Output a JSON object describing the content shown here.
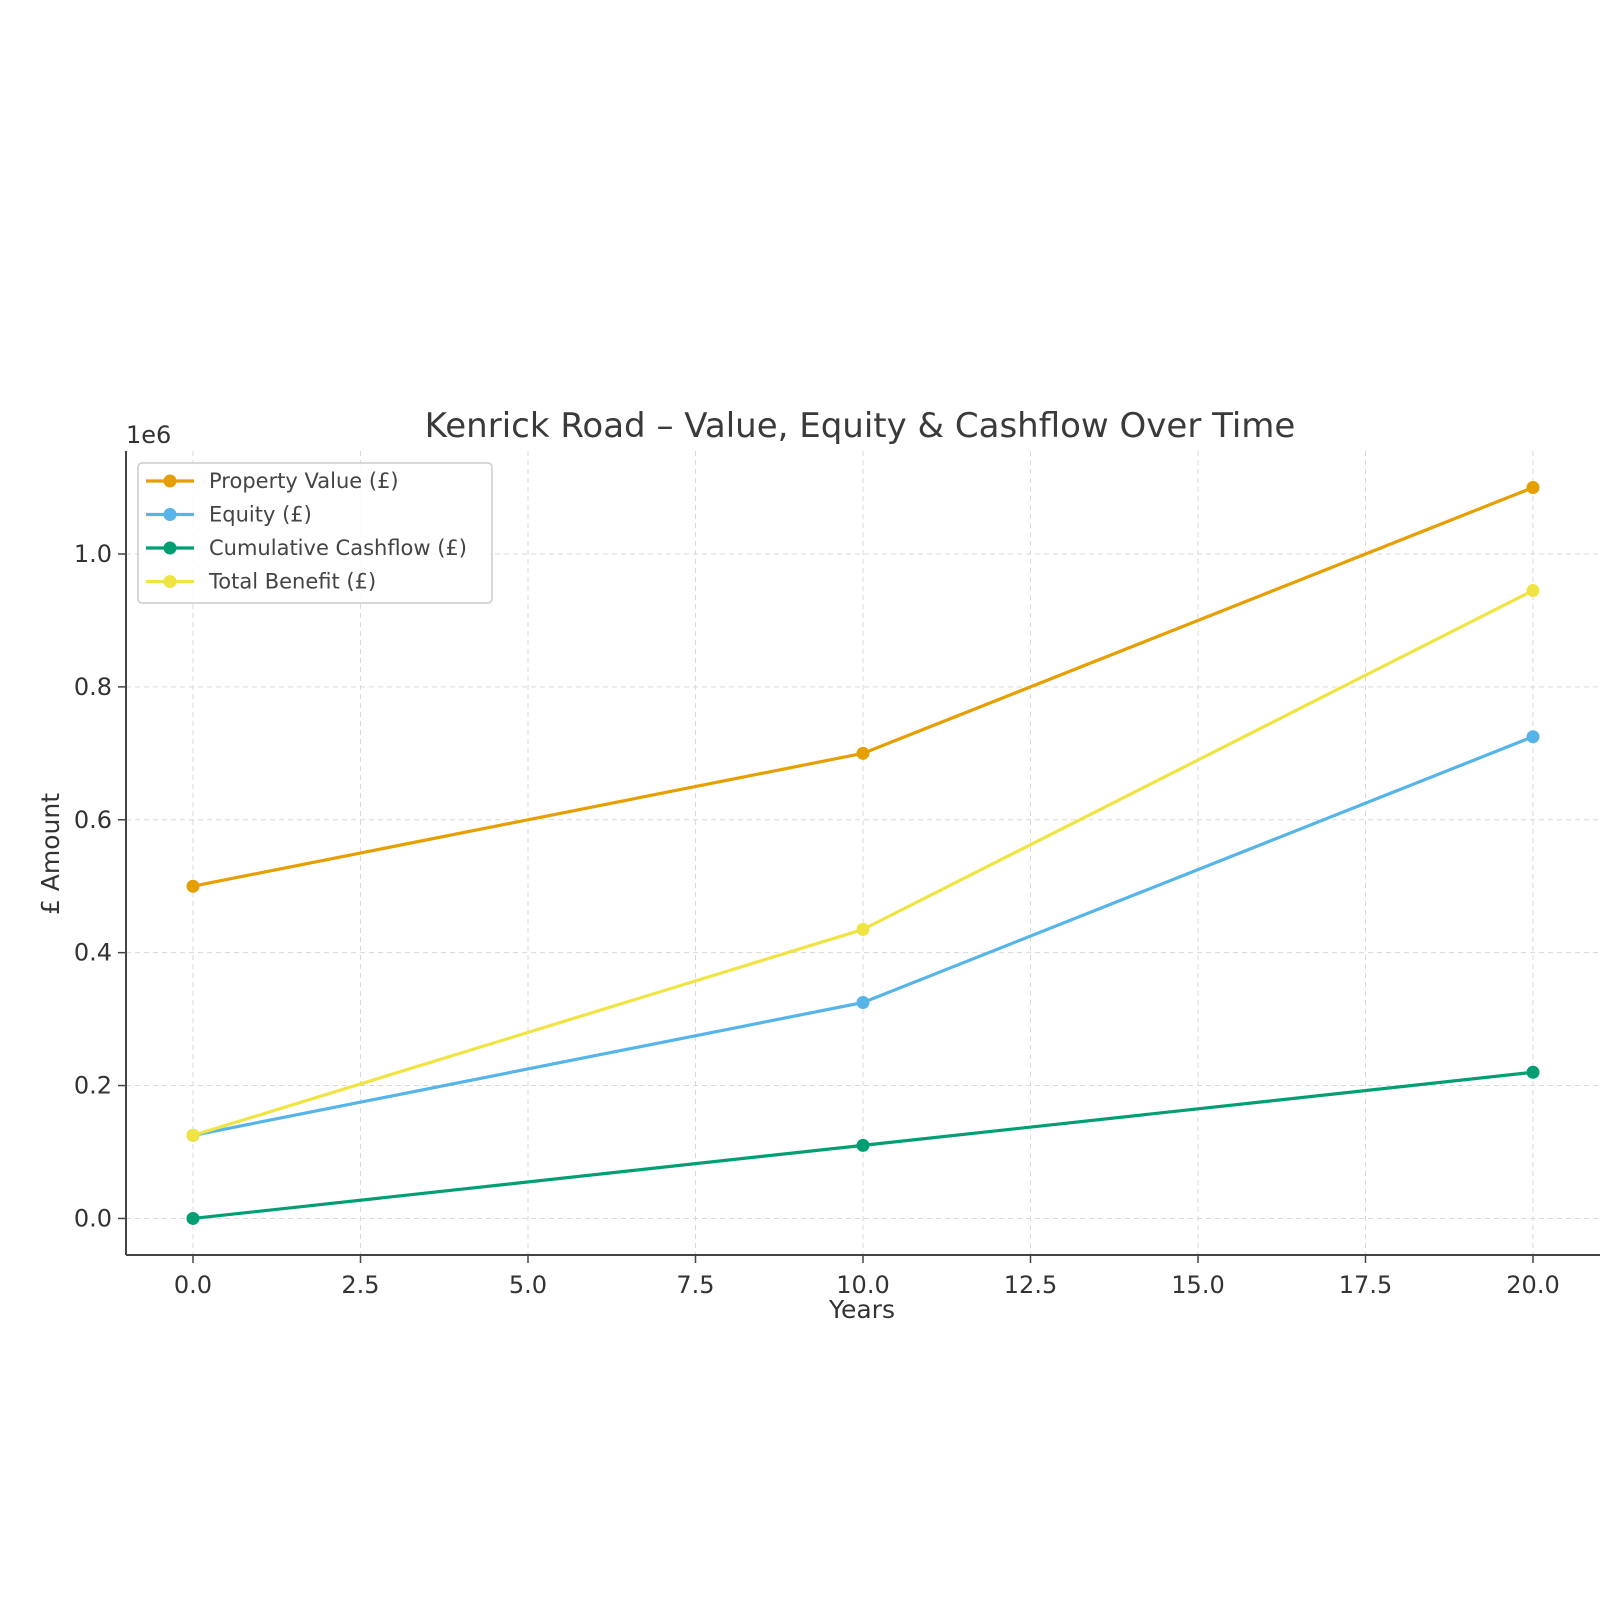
{
  "chart_data": {
    "type": "line",
    "title": "Kenrick Road – Value, Equity & Cashflow Over Time",
    "xlabel": "Years",
    "ylabel": "£ Amount",
    "y_offset_label": "1e6",
    "xlim": [
      -1,
      21
    ],
    "ylim": [
      -55000,
      1155000
    ],
    "x_ticks": [
      0.0,
      2.5,
      5.0,
      7.5,
      10.0,
      12.5,
      15.0,
      17.5,
      20.0
    ],
    "x_tick_labels": [
      "0.0",
      "2.5",
      "5.0",
      "7.5",
      "10.0",
      "12.5",
      "15.0",
      "17.5",
      "20.0"
    ],
    "y_ticks": [
      0,
      200000,
      400000,
      600000,
      800000,
      1000000
    ],
    "y_tick_labels": [
      "0.0",
      "0.2",
      "0.4",
      "0.6",
      "0.8",
      "1.0"
    ],
    "grid": true,
    "legend_position": "top-left",
    "x": [
      0,
      10,
      20
    ],
    "series": [
      {
        "name": "Property Value (£)",
        "color": "#E69F00",
        "values": [
          500000,
          700000,
          1100000
        ]
      },
      {
        "name": "Equity (£)",
        "color": "#56B4E9",
        "values": [
          125000,
          325000,
          725000
        ]
      },
      {
        "name": "Cumulative Cashflow (£)",
        "color": "#009E73",
        "values": [
          0,
          110000,
          220000
        ]
      },
      {
        "name": "Total Benefit (£)",
        "color": "#F0E442",
        "values": [
          125000,
          435000,
          945000
        ]
      }
    ]
  }
}
